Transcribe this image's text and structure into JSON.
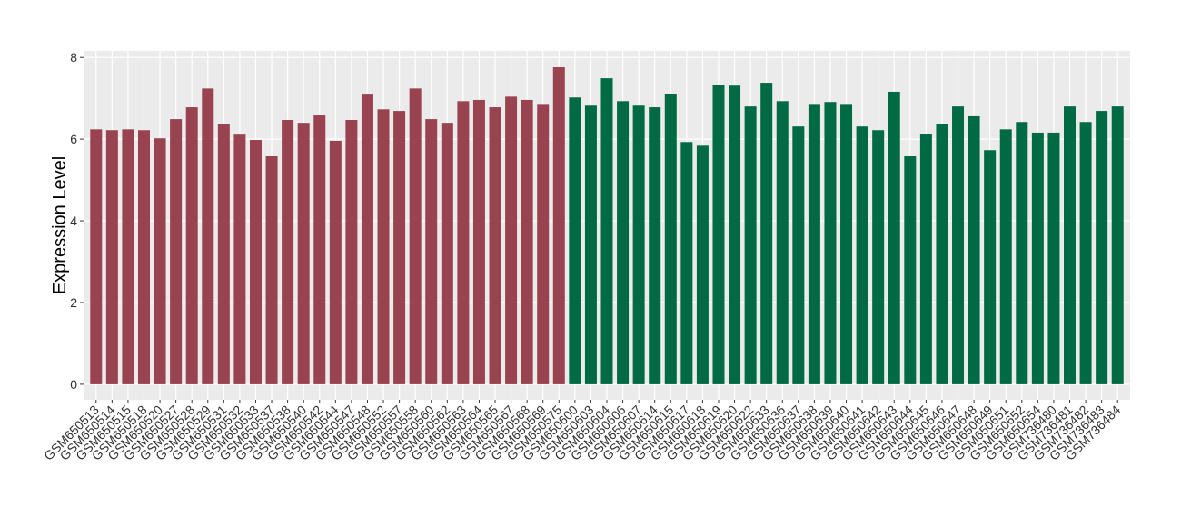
{
  "chart_data": {
    "type": "bar",
    "y_label": "Expression Level",
    "categories": [
      "GSM650513",
      "GSM650514",
      "GSM650515",
      "GSM650518",
      "GSM650520",
      "GSM650527",
      "GSM650528",
      "GSM650529",
      "GSM650531",
      "GSM650532",
      "GSM650533",
      "GSM650537",
      "GSM650538",
      "GSM650540",
      "GSM650542",
      "GSM650544",
      "GSM650547",
      "GSM650548",
      "GSM650552",
      "GSM650557",
      "GSM650558",
      "GSM650560",
      "GSM650562",
      "GSM650563",
      "GSM650564",
      "GSM650565",
      "GSM650567",
      "GSM650568",
      "GSM650569",
      "GSM650575",
      "GSM650600",
      "GSM650603",
      "GSM650604",
      "GSM650606",
      "GSM650607",
      "GSM650614",
      "GSM650615",
      "GSM650617",
      "GSM650618",
      "GSM650619",
      "GSM650620",
      "GSM650622",
      "GSM650633",
      "GSM650636",
      "GSM650637",
      "GSM650638",
      "GSM650639",
      "GSM650640",
      "GSM650641",
      "GSM650642",
      "GSM650643",
      "GSM650644",
      "GSM650645",
      "GSM650646",
      "GSM650647",
      "GSM650648",
      "GSM650649",
      "GSM650651",
      "GSM650652",
      "GSM650654",
      "GSM736480",
      "GSM736481",
      "GSM736482",
      "GSM736483",
      "GSM736484"
    ],
    "values": [
      6.24,
      6.22,
      6.24,
      6.22,
      6.02,
      6.49,
      6.78,
      7.24,
      6.38,
      6.11,
      5.98,
      5.58,
      6.47,
      6.4,
      6.58,
      5.96,
      6.47,
      7.09,
      6.73,
      6.69,
      7.24,
      6.49,
      6.4,
      6.93,
      6.96,
      6.78,
      7.04,
      6.96,
      6.84,
      7.76,
      7.02,
      6.82,
      7.49,
      6.93,
      6.82,
      6.78,
      7.11,
      5.93,
      5.84,
      7.33,
      7.31,
      6.8,
      7.38,
      6.93,
      6.31,
      6.84,
      6.91,
      6.84,
      6.31,
      6.22,
      7.16,
      5.58,
      6.13,
      6.36,
      6.8,
      6.56,
      5.73,
      6.24,
      6.42,
      6.16,
      6.16,
      6.8,
      6.42,
      6.69,
      6.8
    ],
    "colors": [
      "#98434f",
      "#98434f",
      "#98434f",
      "#98434f",
      "#98434f",
      "#98434f",
      "#98434f",
      "#98434f",
      "#98434f",
      "#98434f",
      "#98434f",
      "#98434f",
      "#98434f",
      "#98434f",
      "#98434f",
      "#98434f",
      "#98434f",
      "#98434f",
      "#98434f",
      "#98434f",
      "#98434f",
      "#98434f",
      "#98434f",
      "#98434f",
      "#98434f",
      "#98434f",
      "#98434f",
      "#98434f",
      "#98434f",
      "#98434f",
      "#006a44",
      "#006a44",
      "#006a44",
      "#006a44",
      "#006a44",
      "#006a44",
      "#006a44",
      "#006a44",
      "#006a44",
      "#006a44",
      "#006a44",
      "#006a44",
      "#006a44",
      "#006a44",
      "#006a44",
      "#006a44",
      "#006a44",
      "#006a44",
      "#006a44",
      "#006a44",
      "#006a44",
      "#006a44",
      "#006a44",
      "#006a44",
      "#006a44",
      "#006a44",
      "#006a44",
      "#006a44",
      "#006a44",
      "#006a44",
      "#006a44",
      "#006a44",
      "#006a44",
      "#006a44",
      "#006a44"
    ],
    "ylim": [
      -0.38,
      8.16
    ],
    "yticks": [
      0,
      2,
      4,
      6,
      8
    ],
    "grid": true
  }
}
